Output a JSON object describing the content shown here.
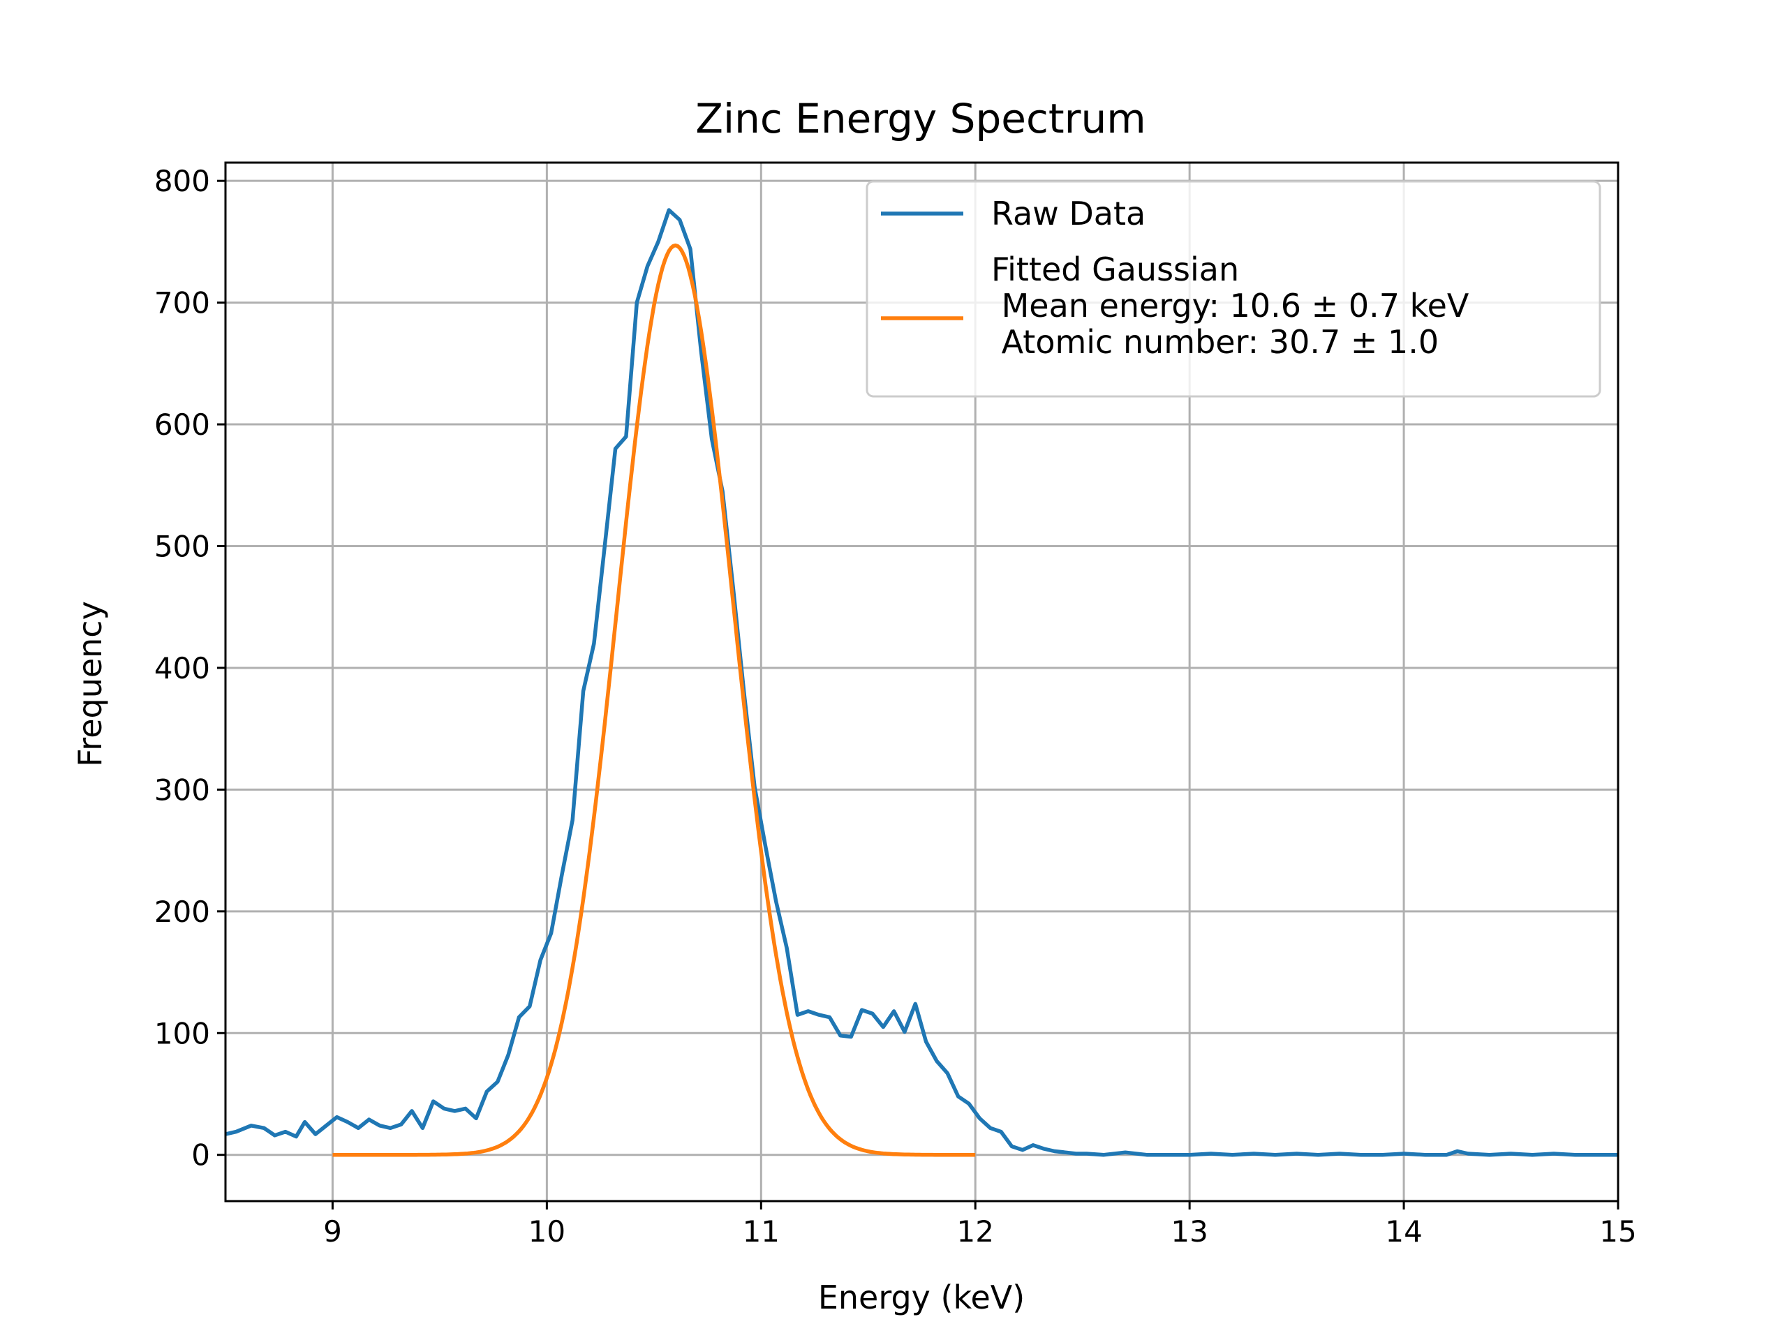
{
  "chart_data": {
    "type": "line",
    "title": "Zinc Energy Spectrum",
    "xlabel": "Energy (keV)",
    "ylabel": "Frequency",
    "xlim": [
      8.5,
      15
    ],
    "ylim": [
      -38,
      815
    ],
    "xticks": [
      9,
      10,
      11,
      12,
      13,
      14,
      15
    ],
    "yticks": [
      0,
      100,
      200,
      300,
      400,
      500,
      600,
      700,
      800
    ],
    "grid": true,
    "legend_position": "top-right",
    "colors": {
      "raw": "#1f77b4",
      "fit": "#ff7f0e",
      "grid": "#b0b0b0"
    },
    "series": [
      {
        "name": "Raw Data",
        "color": "#1f77b4",
        "x": [
          8.5,
          8.55,
          8.62,
          8.68,
          8.73,
          8.78,
          8.83,
          8.87,
          8.92,
          8.97,
          9.02,
          9.07,
          9.12,
          9.17,
          9.22,
          9.27,
          9.32,
          9.37,
          9.42,
          9.47,
          9.52,
          9.57,
          9.62,
          9.67,
          9.72,
          9.77,
          9.82,
          9.87,
          9.92,
          9.97,
          10.02,
          10.07,
          10.12,
          10.17,
          10.22,
          10.27,
          10.32,
          10.37,
          10.42,
          10.47,
          10.52,
          10.57,
          10.62,
          10.67,
          10.72,
          10.77,
          10.82,
          10.87,
          10.92,
          10.97,
          11.02,
          11.07,
          11.12,
          11.17,
          11.22,
          11.27,
          11.32,
          11.37,
          11.42,
          11.47,
          11.52,
          11.57,
          11.62,
          11.67,
          11.72,
          11.77,
          11.82,
          11.87,
          11.92,
          11.97,
          12.02,
          12.07,
          12.12,
          12.17,
          12.22,
          12.27,
          12.32,
          12.37,
          12.42,
          12.47,
          12.52,
          12.6,
          12.7,
          12.8,
          12.9,
          13.0,
          13.1,
          13.2,
          13.3,
          13.4,
          13.5,
          13.6,
          13.7,
          13.8,
          13.9,
          14.0,
          14.1,
          14.2,
          14.25,
          14.3,
          14.4,
          14.5,
          14.6,
          14.7,
          14.8,
          14.9,
          15.0
        ],
        "y": [
          17,
          19,
          24,
          22,
          16,
          19,
          15,
          27,
          17,
          24,
          31,
          27,
          22,
          29,
          24,
          22,
          25,
          36,
          22,
          44,
          38,
          36,
          38,
          30,
          52,
          60,
          82,
          113,
          122,
          160,
          182,
          230,
          275,
          381,
          420,
          500,
          580,
          590,
          700,
          730,
          750,
          776,
          768,
          744,
          660,
          588,
          545,
          465,
          380,
          302,
          254,
          208,
          170,
          115,
          118,
          115,
          113,
          98,
          97,
          119,
          116,
          105,
          118,
          101,
          124,
          93,
          77,
          67,
          48,
          42,
          30,
          22,
          19,
          7,
          4,
          8,
          5,
          3,
          2,
          1,
          1,
          0,
          2,
          0,
          0,
          0,
          1,
          0,
          1,
          0,
          1,
          0,
          1,
          0,
          0,
          1,
          0,
          0,
          3,
          1,
          0,
          1,
          0,
          1,
          0,
          0,
          0
        ]
      },
      {
        "name": "Fitted Gaussian\n Mean energy: 10.6 ± 0.7 keV\n Atomic number: 30.7 ± 1.0",
        "color": "#ff7f0e",
        "x_range": [
          9,
          12
        ],
        "amplitude": 747,
        "mean": 10.6,
        "sigma": 0.27
      }
    ]
  }
}
